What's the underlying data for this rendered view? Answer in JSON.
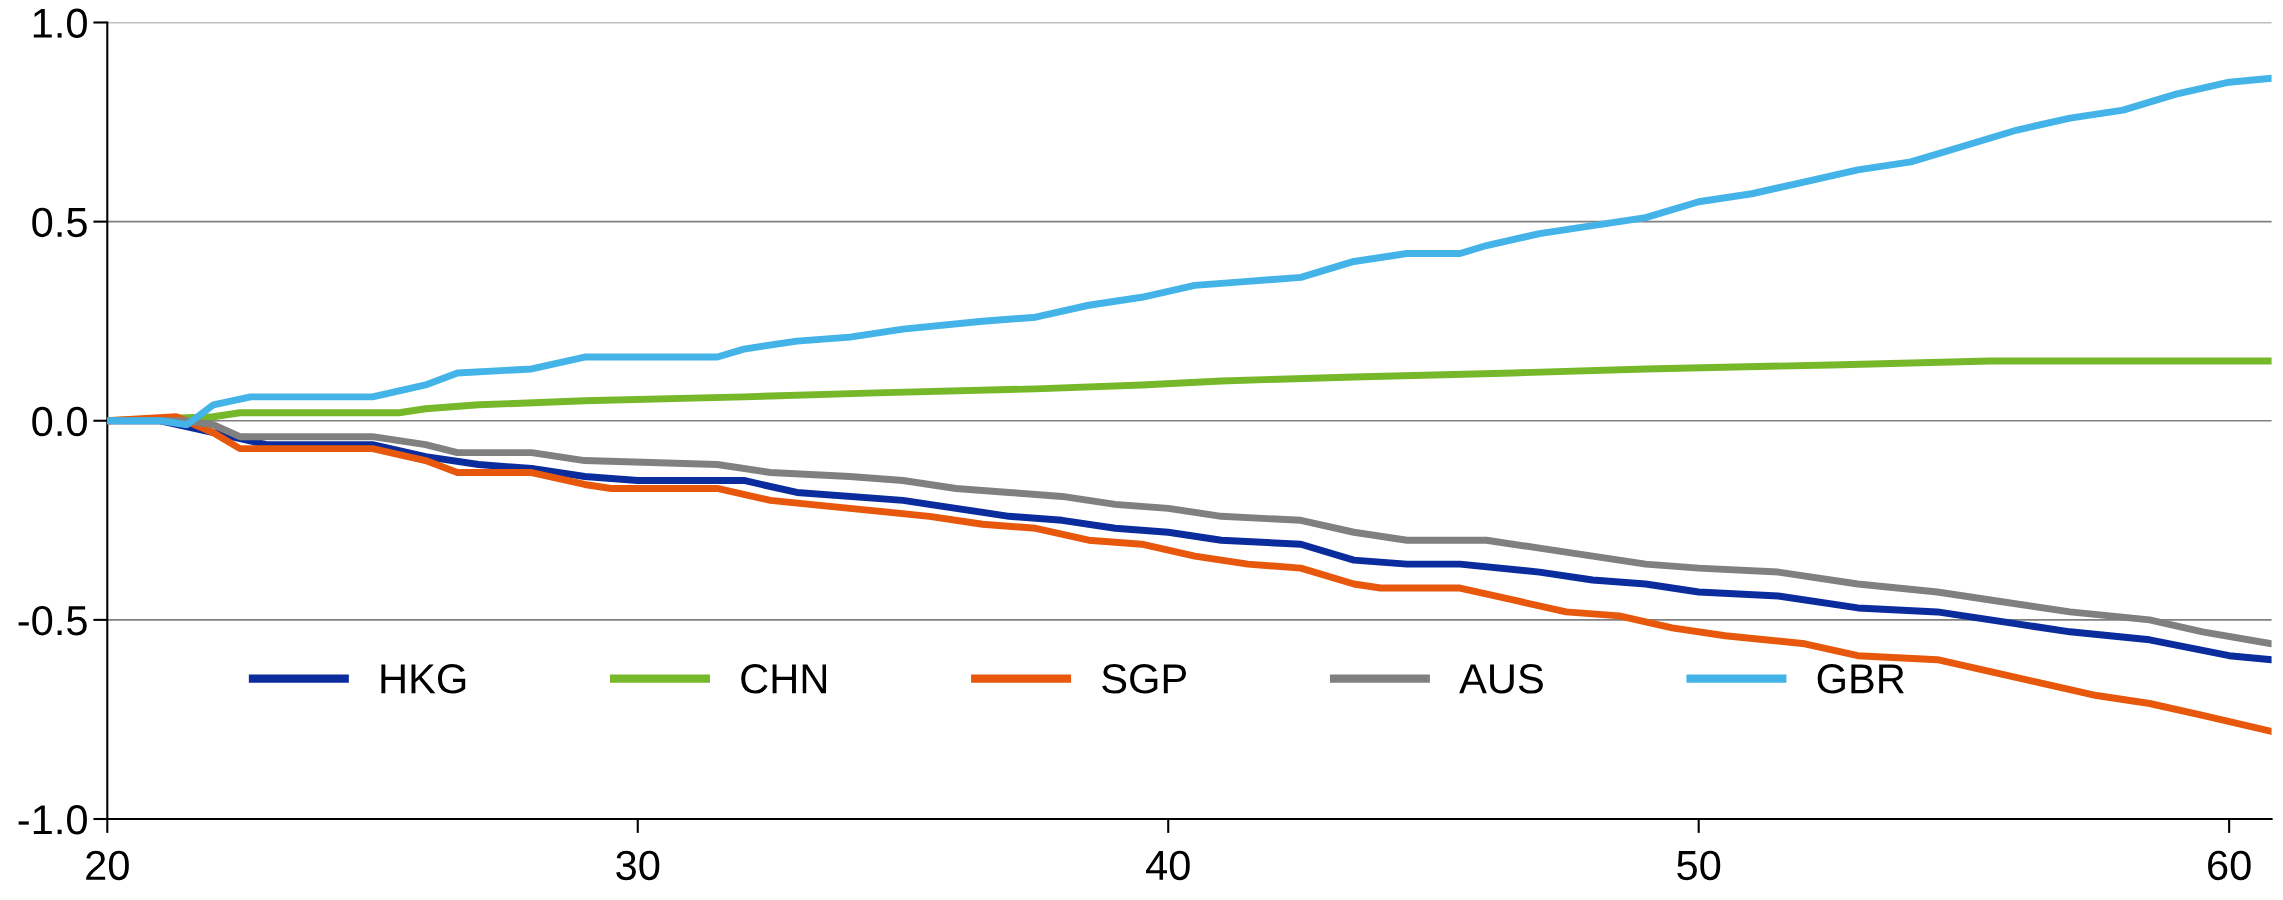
{
  "chart_data": {
    "type": "line",
    "xlim": [
      20,
      60.8
    ],
    "xticks": [
      20,
      30,
      40,
      50,
      60
    ],
    "ylim": [
      -1.0,
      1.0
    ],
    "yticks": [
      {
        "value": -1.0,
        "label": "-1.0"
      },
      {
        "value": -0.5,
        "label": "-0.5"
      },
      {
        "value": 0.0,
        "label": "0.0"
      },
      {
        "value": 0.5,
        "label": "0.5"
      },
      {
        "value": 1.0,
        "label": "1.0"
      }
    ],
    "grid": "y",
    "legend": "bottom left",
    "marker": "none",
    "line_style": "solid",
    "series": [
      {
        "name": "HKG",
        "color": "#0b2c9c",
        "x": [
          20,
          21,
          22,
          23,
          25,
          26,
          27,
          28,
          29,
          30,
          32,
          33,
          35,
          36,
          37,
          38,
          39,
          40,
          41,
          42.5,
          43.5,
          44.5,
          45.5,
          47,
          48,
          49,
          50,
          51.5,
          53,
          54.5,
          56,
          57,
          58.5,
          60,
          60.8
        ],
        "values": [
          0,
          0,
          -0.03,
          -0.06,
          -0.06,
          -0.09,
          -0.11,
          -0.12,
          -0.14,
          -0.15,
          -0.15,
          -0.18,
          -0.2,
          -0.22,
          -0.24,
          -0.25,
          -0.27,
          -0.28,
          -0.3,
          -0.31,
          -0.35,
          -0.36,
          -0.36,
          -0.38,
          -0.4,
          -0.41,
          -0.43,
          -0.44,
          -0.47,
          -0.48,
          -0.51,
          -0.53,
          -0.55,
          -0.59,
          -0.6
        ]
      },
      {
        "name": "CHN",
        "color": "#76b82a",
        "x": [
          20,
          22,
          22.5,
          25.5,
          26,
          27,
          29,
          32,
          34.5,
          37.5,
          39.5,
          41,
          43.5,
          46.5,
          49,
          52.5,
          55.5,
          60.8
        ],
        "values": [
          0,
          0.01,
          0.02,
          0.02,
          0.03,
          0.04,
          0.05,
          0.06,
          0.07,
          0.08,
          0.09,
          0.1,
          0.11,
          0.12,
          0.13,
          0.14,
          0.15,
          0.15
        ]
      },
      {
        "name": "SGP",
        "color": "#e8580c",
        "x": [
          20,
          21.3,
          22,
          22.5,
          23,
          25,
          26,
          26.6,
          28,
          29,
          29.5,
          31.5,
          32.5,
          34,
          35.5,
          36.5,
          37.5,
          38.5,
          39.5,
          40.5,
          41.5,
          42.5,
          43.5,
          44,
          45.5,
          46.5,
          47.5,
          48.5,
          49.5,
          50.5,
          52,
          53,
          54.5,
          55.5,
          56.5,
          57.5,
          58.5,
          59.5,
          60.8
        ],
        "values": [
          0,
          0.01,
          -0.03,
          -0.07,
          -0.07,
          -0.07,
          -0.1,
          -0.13,
          -0.13,
          -0.16,
          -0.17,
          -0.17,
          -0.2,
          -0.22,
          -0.24,
          -0.26,
          -0.27,
          -0.3,
          -0.31,
          -0.34,
          -0.36,
          -0.37,
          -0.41,
          -0.42,
          -0.42,
          -0.45,
          -0.48,
          -0.49,
          -0.52,
          -0.54,
          -0.56,
          -0.59,
          -0.6,
          -0.63,
          -0.66,
          -0.69,
          -0.71,
          -0.74,
          -0.78
        ]
      },
      {
        "name": "AUS",
        "color": "#808080",
        "x": [
          20,
          21.5,
          22,
          22.5,
          25,
          26,
          26.6,
          28,
          29,
          31.5,
          32.5,
          34,
          35,
          36,
          37,
          38,
          39,
          40,
          41,
          42.5,
          43.5,
          44.5,
          46,
          47,
          48,
          49,
          50,
          51.5,
          53,
          54.5,
          55.5,
          57,
          58.5,
          59.5,
          60.8
        ],
        "values": [
          0,
          0,
          -0.01,
          -0.04,
          -0.04,
          -0.06,
          -0.08,
          -0.08,
          -0.1,
          -0.11,
          -0.13,
          -0.14,
          -0.15,
          -0.17,
          -0.18,
          -0.19,
          -0.21,
          -0.22,
          -0.24,
          -0.25,
          -0.28,
          -0.3,
          -0.3,
          -0.32,
          -0.34,
          -0.36,
          -0.37,
          -0.38,
          -0.41,
          -0.43,
          -0.45,
          -0.48,
          -0.5,
          -0.53,
          -0.56
        ]
      },
      {
        "name": "GBR",
        "color": "#44b4e8",
        "x": [
          20,
          21,
          21.5,
          22,
          22.7,
          25,
          26,
          26.6,
          28,
          29,
          31.5,
          32,
          33,
          34,
          35,
          36.5,
          37.5,
          38.5,
          39.5,
          40.5,
          41.5,
          42.5,
          43.5,
          44.5,
          45.5,
          46,
          47,
          48,
          49,
          50,
          51,
          52,
          53,
          54,
          55,
          56,
          57,
          58,
          59,
          60,
          60.8
        ],
        "values": [
          0,
          0,
          -0.01,
          0.04,
          0.06,
          0.06,
          0.09,
          0.12,
          0.13,
          0.16,
          0.16,
          0.18,
          0.2,
          0.21,
          0.23,
          0.25,
          0.26,
          0.29,
          0.31,
          0.34,
          0.35,
          0.36,
          0.4,
          0.42,
          0.42,
          0.44,
          0.47,
          0.49,
          0.51,
          0.55,
          0.57,
          0.6,
          0.63,
          0.65,
          0.69,
          0.73,
          0.76,
          0.78,
          0.82,
          0.85,
          0.86
        ]
      }
    ]
  }
}
